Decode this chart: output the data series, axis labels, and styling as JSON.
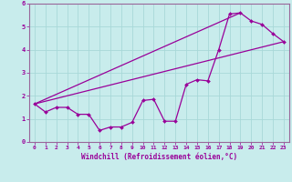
{
  "xlabel": "Windchill (Refroidissement éolien,°C)",
  "xlim": [
    -0.5,
    23.5
  ],
  "ylim": [
    0,
    6
  ],
  "xticks": [
    0,
    1,
    2,
    3,
    4,
    5,
    6,
    7,
    8,
    9,
    10,
    11,
    12,
    13,
    14,
    15,
    16,
    17,
    18,
    19,
    20,
    21,
    22,
    23
  ],
  "yticks": [
    0,
    1,
    2,
    3,
    4,
    5,
    6
  ],
  "bg_color": "#c8ecec",
  "line_color": "#990099",
  "grid_color": "#a8d8d8",
  "spine_color": "#996699",
  "data_line": {
    "x": [
      0,
      1,
      2,
      3,
      4,
      5,
      6,
      7,
      8,
      9,
      10,
      11,
      12,
      13,
      14,
      15,
      16,
      17,
      18,
      19,
      20,
      21,
      22,
      23
    ],
    "y": [
      1.65,
      1.3,
      1.5,
      1.5,
      1.2,
      1.2,
      0.5,
      0.65,
      0.65,
      0.85,
      1.8,
      1.85,
      0.9,
      0.9,
      2.5,
      2.7,
      2.65,
      4.0,
      5.55,
      5.6,
      5.25,
      5.1,
      4.7,
      4.35
    ]
  },
  "line1_x": [
    0,
    23
  ],
  "line1_y": [
    1.65,
    4.35
  ],
  "line2_x": [
    0,
    19
  ],
  "line2_y": [
    1.65,
    5.6
  ]
}
